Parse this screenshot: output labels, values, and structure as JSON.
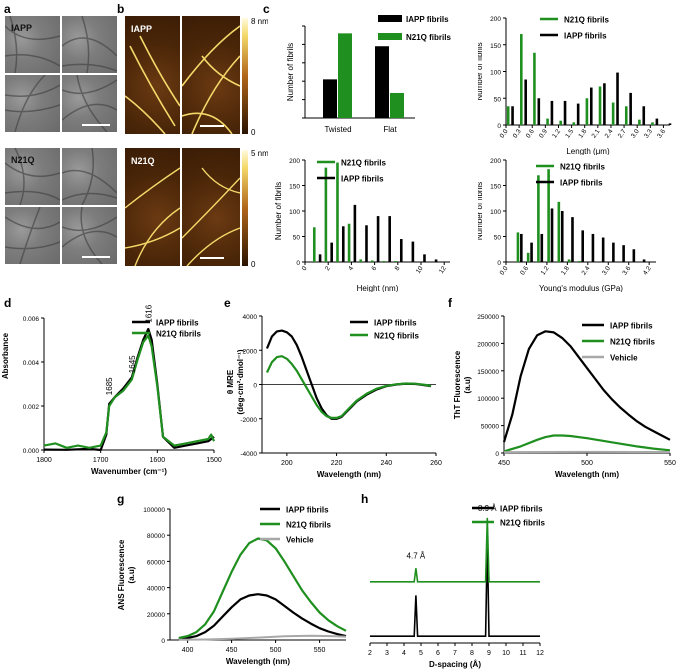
{
  "panels": {
    "a": {
      "letter": "a",
      "top_label": "IAPP",
      "bottom_label": "N21Q"
    },
    "b": {
      "letter": "b",
      "top_label": "IAPP",
      "bottom_label": "N21Q",
      "colorbar_top": {
        "max": "8 nm",
        "min": "0"
      },
      "colorbar_bottom": {
        "max": "5 nm",
        "min": "0"
      }
    },
    "c": {
      "letter": "c"
    },
    "d": {
      "letter": "d"
    },
    "e": {
      "letter": "e"
    },
    "f": {
      "letter": "f"
    },
    "g": {
      "letter": "g"
    },
    "h": {
      "letter": "h"
    }
  },
  "colors": {
    "iapp": "#000000",
    "n21q": "#1f8f1f",
    "vehicle": "#a8a8a8"
  },
  "chart_data": [
    {
      "id": "c1",
      "type": "bar",
      "ylabel": "Number of fibrils",
      "categories": [
        "Twisted",
        "Flat"
      ],
      "ylim": [
        0,
        2500
      ],
      "legend": [
        "IAPP fibrils",
        "N21Q fibrils"
      ],
      "series": [
        {
          "name": "IAPP fibrils",
          "values": [
            1050,
            1950
          ]
        },
        {
          "name": "N21Q fibrils",
          "values": [
            2300,
            680
          ]
        }
      ]
    },
    {
      "id": "c2",
      "type": "bar",
      "ylabel": "Number of fibrils",
      "xlabel": "Length (μm)",
      "xlim": [
        0,
        3.75
      ],
      "ylim": [
        0,
        200
      ],
      "xticks": [
        "0.0",
        "0.3",
        "0.6",
        "0.9",
        "1.2",
        "1.5",
        "1.8",
        "2.1",
        "2.4",
        "2.7",
        "3.0",
        "3.3",
        "3.6"
      ],
      "yticks": [
        "0",
        "50",
        "100",
        "150",
        "200"
      ],
      "legend": [
        "N21Q fibrils",
        "IAPP fibrils"
      ],
      "series": [
        {
          "name": "N21Q fibrils",
          "x": [
            0.05,
            0.35,
            0.65,
            0.95,
            1.25,
            1.55,
            1.85,
            2.15,
            2.45,
            2.75,
            3.05,
            3.35,
            3.65
          ],
          "values": [
            35,
            170,
            135,
            12,
            8,
            5,
            50,
            72,
            42,
            35,
            10,
            5,
            0
          ]
        },
        {
          "name": "IAPP fibrils",
          "x": [
            0.15,
            0.45,
            0.75,
            1.05,
            1.35,
            1.65,
            1.95,
            2.25,
            2.55,
            2.85,
            3.15,
            3.45,
            3.75
          ],
          "values": [
            35,
            85,
            50,
            45,
            45,
            40,
            70,
            78,
            98,
            60,
            35,
            12,
            3
          ]
        }
      ]
    },
    {
      "id": "c3",
      "type": "bar",
      "ylabel": "Number of fibrils",
      "xlabel": "Height (nm)",
      "xlim": [
        0,
        12.5
      ],
      "ylim": [
        0,
        200
      ],
      "xticks": [
        "0",
        "2",
        "4",
        "6",
        "8",
        "10",
        "12"
      ],
      "yticks": [
        "0",
        "50",
        "100",
        "150",
        "200"
      ],
      "legend": [
        "N21Q fibrils",
        "IAPP fibrils"
      ],
      "series": [
        {
          "name": "N21Q fibrils",
          "x": [
            0.8,
            1.8,
            2.8,
            3.8,
            4.8,
            5.8,
            6.8,
            7.8,
            8.8,
            9.8,
            10.8
          ],
          "values": [
            68,
            185,
            195,
            75,
            5,
            3,
            2,
            2,
            0,
            0,
            0
          ]
        },
        {
          "name": "IAPP fibrils",
          "x": [
            1.3,
            2.3,
            3.3,
            4.3,
            5.3,
            6.3,
            7.3,
            8.3,
            9.3,
            10.3,
            11.3
          ],
          "values": [
            15,
            38,
            70,
            112,
            72,
            90,
            90,
            45,
            40,
            15,
            5
          ]
        }
      ]
    },
    {
      "id": "c4",
      "type": "bar",
      "ylabel": "Number of fibrils",
      "xlabel": "Young's modulus (GPa)",
      "xlim": [
        0,
        4.4
      ],
      "ylim": [
        0,
        200
      ],
      "xticks": [
        "0.0",
        "0.6",
        "1.2",
        "1.8",
        "2.4",
        "3.0",
        "3.6",
        "4.2"
      ],
      "yticks": [
        "0",
        "50",
        "100",
        "150",
        "200"
      ],
      "legend": [
        "N21Q fibrils",
        "IAPP fibrils"
      ],
      "series": [
        {
          "name": "N21Q fibrils",
          "x": [
            0.35,
            0.65,
            0.95,
            1.25,
            1.55,
            1.85,
            2.15
          ],
          "values": [
            58,
            18,
            170,
            182,
            118,
            5,
            2
          ]
        },
        {
          "name": "IAPP fibrils",
          "x": [
            0.45,
            0.75,
            1.05,
            1.35,
            1.65,
            1.95,
            2.25,
            2.55,
            2.85,
            3.15,
            3.45,
            3.75,
            4.05
          ],
          "values": [
            55,
            38,
            55,
            105,
            100,
            88,
            62,
            55,
            48,
            38,
            33,
            25,
            5
          ]
        }
      ]
    },
    {
      "id": "d",
      "type": "line",
      "ylabel": "Absorbance",
      "xlabel": "Wavenumber (cm⁻¹)",
      "xlim": [
        1800,
        1500
      ],
      "ylim": [
        0,
        0.006
      ],
      "xticks": [
        "1800",
        "1700",
        "1600",
        "1500"
      ],
      "yticks": [
        "0.000",
        "0.002",
        "0.004",
        "0.006"
      ],
      "annotations": [
        "1685",
        "1645",
        "1616"
      ],
      "legend": [
        "IAPP fibrils",
        "N21Q fibrils"
      ],
      "series": [
        {
          "name": "IAPP fibrils",
          "x": [
            1800,
            1760,
            1720,
            1700,
            1690,
            1685,
            1675,
            1660,
            1645,
            1635,
            1625,
            1616,
            1610,
            1600,
            1590,
            1570,
            1550,
            1530,
            1510,
            1505,
            1500
          ],
          "values": [
            2e-05,
            1e-05,
            5e-05,
            0.0,
            0.0007,
            0.0021,
            0.0024,
            0.0028,
            0.0033,
            0.0042,
            0.005,
            0.0055,
            0.005,
            0.003,
            0.0006,
            0.0001,
            0.0002,
            0.0003,
            0.0004,
            0.0005,
            0.0006
          ]
        },
        {
          "name": "N21Q fibrils",
          "x": [
            1800,
            1780,
            1760,
            1740,
            1720,
            1700,
            1690,
            1685,
            1675,
            1660,
            1645,
            1635,
            1625,
            1616,
            1610,
            1600,
            1590,
            1570,
            1550,
            1530,
            1510,
            1505,
            1500
          ],
          "values": [
            0.0002,
            0.0003,
            0.0001,
            0.0002,
            0.0001,
            0.0002,
            0.0008,
            0.002,
            0.0024,
            0.0027,
            0.0032,
            0.0041,
            0.0049,
            0.0052,
            0.0047,
            0.0029,
            0.0006,
            0.0002,
            0.0003,
            0.0004,
            0.0005,
            0.0007,
            0.0004
          ]
        }
      ]
    },
    {
      "id": "e",
      "type": "line",
      "ylabel": "θ MRE",
      "ylabel2": "(deg·cm²·dmol⁻¹)",
      "xlabel": "Wavelength (nm)",
      "xlim": [
        190,
        260
      ],
      "ylim": [
        -4000,
        4000
      ],
      "xticks": [
        "200",
        "220",
        "240",
        "260"
      ],
      "yticks": [
        "-4000",
        "-2000",
        "0",
        "2000",
        "4000"
      ],
      "legend": [
        "IAPP fibrils",
        "N21Q fibrils"
      ],
      "series": [
        {
          "name": "IAPP fibrils",
          "x": [
            192,
            194,
            196,
            198,
            200,
            202,
            204,
            206,
            208,
            210,
            212,
            214,
            216,
            218,
            220,
            222,
            224,
            226,
            228,
            232,
            236,
            240,
            244,
            248,
            252,
            256,
            258
          ],
          "values": [
            2100,
            2800,
            3100,
            3150,
            3050,
            2800,
            2300,
            1600,
            800,
            0,
            -800,
            -1400,
            -1800,
            -2000,
            -2000,
            -1900,
            -1600,
            -1300,
            -1000,
            -600,
            -300,
            -100,
            0,
            50,
            30,
            -50,
            -100
          ]
        },
        {
          "name": "N21Q fibrils",
          "x": [
            192,
            194,
            196,
            198,
            200,
            202,
            204,
            206,
            208,
            210,
            212,
            214,
            216,
            218,
            220,
            222,
            224,
            226,
            228,
            232,
            236,
            240,
            244,
            248,
            252,
            256,
            258
          ],
          "values": [
            700,
            1300,
            1600,
            1650,
            1500,
            1200,
            800,
            300,
            -200,
            -700,
            -1200,
            -1600,
            -1850,
            -1950,
            -1950,
            -1850,
            -1550,
            -1250,
            -950,
            -550,
            -250,
            -80,
            10,
            60,
            40,
            -30,
            -80
          ]
        }
      ]
    },
    {
      "id": "f",
      "type": "line",
      "ylabel": "ThT Fluorescence",
      "ylabel2": "(a.u)",
      "xlabel": "Wavelength (nm)",
      "xlim": [
        450,
        550
      ],
      "ylim": [
        0,
        250000
      ],
      "xticks": [
        "450",
        "500",
        "550"
      ],
      "yticks": [
        "0",
        "50000",
        "100000",
        "150000",
        "200000",
        "250000"
      ],
      "legend": [
        "IAPP fibrils",
        "N21Q fibrils",
        "Vehicle"
      ],
      "series": [
        {
          "name": "IAPP fibrils",
          "x": [
            450,
            455,
            460,
            465,
            470,
            475,
            480,
            485,
            490,
            495,
            500,
            505,
            510,
            515,
            520,
            525,
            530,
            535,
            540,
            545,
            550
          ],
          "values": [
            20000,
            70000,
            140000,
            190000,
            215000,
            222000,
            220000,
            210000,
            195000,
            175000,
            155000,
            135000,
            115000,
            98000,
            83000,
            70000,
            58000,
            48000,
            40000,
            32000,
            24000
          ]
        },
        {
          "name": "N21Q fibrils",
          "x": [
            450,
            460,
            470,
            475,
            480,
            485,
            490,
            500,
            510,
            520,
            530,
            540,
            550
          ],
          "values": [
            3000,
            12000,
            24000,
            29000,
            32000,
            32000,
            31000,
            27000,
            22000,
            17000,
            12000,
            8000,
            5000
          ]
        },
        {
          "name": "Vehicle",
          "x": [
            450,
            500,
            550
          ],
          "values": [
            1500,
            2000,
            1800
          ]
        }
      ]
    },
    {
      "id": "g",
      "type": "line",
      "ylabel": "ANS Fluorescence",
      "ylabel2": "(a.u)",
      "xlabel": "Wavelength (nm)",
      "xlim": [
        380,
        580
      ],
      "ylim": [
        0,
        100000
      ],
      "xticks": [
        "400",
        "450",
        "500",
        "550"
      ],
      "yticks": [
        "0",
        "20000",
        "40000",
        "60000",
        "80000",
        "100000"
      ],
      "legend": [
        "IAPP fibrils",
        "N21Q fibrils",
        "Vehicle"
      ],
      "series": [
        {
          "name": "IAPP fibrils",
          "x": [
            390,
            400,
            410,
            420,
            430,
            440,
            450,
            460,
            470,
            480,
            490,
            500,
            510,
            520,
            530,
            540,
            550,
            560,
            570,
            580
          ],
          "values": [
            800,
            1500,
            3000,
            6000,
            11000,
            18000,
            25000,
            31000,
            34000,
            35000,
            34000,
            31000,
            26000,
            21000,
            16500,
            12500,
            9000,
            6500,
            4500,
            3000
          ]
        },
        {
          "name": "N21Q fibrils",
          "x": [
            390,
            400,
            410,
            420,
            430,
            440,
            450,
            460,
            470,
            480,
            490,
            500,
            510,
            520,
            530,
            540,
            550,
            560,
            570,
            580
          ],
          "values": [
            1500,
            3000,
            6000,
            12000,
            22000,
            37000,
            52000,
            65000,
            74000,
            77500,
            76000,
            70000,
            60000,
            49000,
            38000,
            29000,
            21000,
            15000,
            10500,
            7000
          ]
        },
        {
          "name": "Vehicle",
          "x": [
            390,
            420,
            450,
            480,
            510,
            540,
            570,
            580
          ],
          "values": [
            200,
            400,
            900,
            1800,
            2800,
            3200,
            2800,
            2500
          ]
        }
      ]
    },
    {
      "id": "h",
      "type": "line",
      "xlabel": "D-spacing (Å)",
      "xlim": [
        2,
        12
      ],
      "ylim": [
        0,
        1
      ],
      "xticks": [
        "2",
        "3",
        "4",
        "5",
        "6",
        "7",
        "8",
        "9",
        "10",
        "11",
        "12"
      ],
      "annotations": [
        "4.7 Å",
        "8.9 Å"
      ],
      "legend": [
        "IAPP fibrils",
        "N21Q fibrils"
      ],
      "series": [
        {
          "name": "IAPP fibrils",
          "baseline": 0.05,
          "x": [
            2,
            4.6,
            4.7,
            4.8,
            8.8,
            8.9,
            9.0,
            12
          ],
          "values": [
            0.05,
            0.05,
            0.35,
            0.05,
            0.05,
            0.75,
            0.05,
            0.05
          ]
        },
        {
          "name": "N21Q fibrils",
          "baseline": 0.45,
          "x": [
            2,
            4.6,
            4.7,
            4.8,
            8.8,
            8.9,
            9.0,
            12
          ],
          "values": [
            0.45,
            0.45,
            0.55,
            0.45,
            0.45,
            0.92,
            0.45,
            0.45
          ]
        }
      ]
    }
  ]
}
